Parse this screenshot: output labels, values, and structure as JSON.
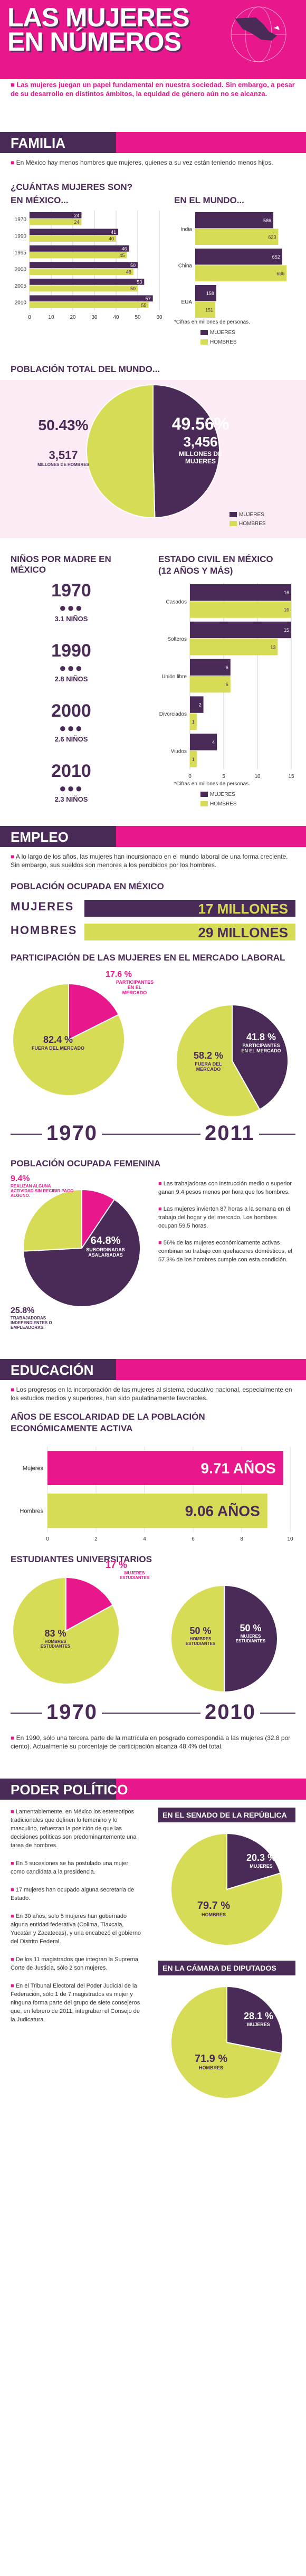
{
  "header": {
    "title_line1": "LAS MUJERES",
    "title_line2": "EN NÚMEROS",
    "intro": "Las mujeres juegan un papel fundamental en nuestra sociedad. Sin embargo, a pesar de su desarrollo en distintos ámbitos, la equidad de género aún no se alcanza."
  },
  "colors": {
    "pink": "#e8188c",
    "purple": "#4a2a57",
    "yellow": "#d7dc57",
    "lightpink": "#f7c5df"
  },
  "familia": {
    "heading": "FAMILIA",
    "bullet": "En México hay menos hombres que mujeres, quienes a su vez están teniendo menos hijos.",
    "q_title_1": "¿CUÁNTAS MUJERES SON?",
    "q_title_2": "EN MÉXICO...",
    "world_title": "EN EL MUNDO...",
    "footnote": "*Cifras en millones de personas.",
    "legend_women": "MUJERES",
    "legend_men": "HOMBRES"
  },
  "poblacion": {
    "title": "POBLACIÓN TOTAL DEL MUNDO...",
    "men_pct": "50.43%",
    "men_num": "3,517",
    "men_label": "MILLONES DE HOMBRES",
    "women_pct": "49.56%",
    "women_num": "3,456",
    "women_label": "MILLONES DE MUJERES",
    "legend_women": "MUJERES",
    "legend_men": "HOMBRES"
  },
  "ninos": {
    "title": "NIÑOS POR MADRE EN MÉXICO",
    "items": [
      {
        "year": "1970",
        "value": "3.1 NIÑOS"
      },
      {
        "year": "1990",
        "value": "2.8 NIÑOS"
      },
      {
        "year": "2000",
        "value": "2.6 NIÑOS"
      },
      {
        "year": "2010",
        "value": "2.3 NIÑOS"
      }
    ]
  },
  "civil": {
    "title_1": "ESTADO CIVIL EN MÉXICO",
    "title_2": "(12 AÑOS Y MÁS)",
    "footnote": "*Cifras en millones de personas.",
    "legend_women": "MUJERES",
    "legend_men": "HOMBRES"
  },
  "empleo": {
    "heading": "EMPLEO",
    "bullet": "A lo largo de los años, las mujeres han incursionado en el mundo laboral de una forma creciente. Sin embargo, sus sueldos son menores a los percibidos por los hombres.",
    "ocupada_title": "POBLACIÓN OCUPADA EN MÉXICO",
    "mujeres_label": "MUJERES",
    "mujeres_value": "17 MILLONES",
    "hombres_label": "HOMBRES",
    "hombres_value": "29 MILLONES",
    "participacion_title": "PARTICIPACIÓN DE LAS MUJERES EN EL MERCADO LABORAL",
    "p1970_in": "17.6 %",
    "p1970_in_label": "PARTICIPANTES EN EL MERCADO",
    "p1970_out": "82.4 %",
    "p1970_out_label": "FUERA DEL MERCADO",
    "p2011_in": "41.8 %",
    "p2011_in_label": "PARTICIPANTES EN EL MERCADO",
    "p2011_out": "58.2 %",
    "p2011_out_label": "FUERA DEL MERCADO",
    "year_a": "1970",
    "year_b": "2011",
    "fem_title": "POBLACIÓN OCUPADA FEMENINA",
    "fem_a": "9.4%",
    "fem_a_label": "REALIZAN ALGUNA ACTIVIDAD SIN RECIBIR PAGO ALGUNO.",
    "fem_b": "64.8%",
    "fem_b_label": "SUBORDINADAS ASALARIADAS",
    "fem_c": "25.8%",
    "fem_c_label": "TRABAJADORAS INDEPENDIENTES O EMPLEADORAS.",
    "notes": [
      "Las trabajadoras con instrucción medio o superior ganan 9.4 pesos menos por hora que los hombres.",
      "Las mujeres invierten 87 horas a la semana en el trabajo del hogar y del mercado. Los hombres ocupan 59.5 horas.",
      "56% de las mujeres económicamente activas combinan su trabajo con quehaceres domésticos, el 57.3% de los hombres cumple con esta condición."
    ]
  },
  "educacion": {
    "heading": "EDUCACIÓN",
    "bullet": "Los progresos en la incorporación de las mujeres al sistema educativo nacional, especialmente en los estudios medios y superiores, han sido paulatinamente favorables.",
    "anos_title_1": "AÑOS DE ESCOLARIDAD DE LA POBLACIÓN",
    "anos_title_2": "ECONÓMICAMENTE ACTIVA",
    "mujeres_label": "Mujeres",
    "mujeres_value": "9.71 AÑOS",
    "hombres_label": "Hombres",
    "hombres_value": "9.06 AÑOS",
    "univ_title": "ESTUDIANTES UNIVERSITARIOS",
    "u1970_w": "17 %",
    "u1970_w_label": "MUJERES ESTUDIANTES",
    "u1970_m": "83 %",
    "u1970_m_label": "HOMBRES ESTUDIANTES",
    "u2010_m": "50 %",
    "u2010_m_label": "HOMBRES ESTUDIANTES",
    "u2010_w": "50 %",
    "u2010_w_label": "MUJERES ESTUDIANTES",
    "year_a": "1970",
    "year_b": "2010",
    "notes": [
      "En 1990, sólo una tercera parte de la matrícula en posgrado correspondía a las mujeres (32.8 por ciento). Actualmente su porcentaje de participación alcanza 48.4% del total."
    ]
  },
  "politico": {
    "heading": "PODER POLÍTICO",
    "intro": "Lamentablemente, en México los estereotipos tradicionales que definen lo femenino y lo masculino, refuerzan la posición de que las decisiones políticas son predominantemente una tarea de hombres.",
    "notes": [
      "En 5 sucesiones se ha postulado una mujer como candidata a la presidencia.",
      "17 mujeres han ocupado alguna secretaría de Estado.",
      "En 30 años, sólo 5 mujeres han gobernado alguna entidad federativa (Colima, Tlaxcala, Yucatán y Zacatecas), y una encabezó el gobierno del Distrito Federal.",
      "De los 11 magistrados que integran la Suprema Corte de Justicia, sólo 2 son mujeres.",
      "En el Tribunal Electoral del Poder Judicial de la Federación, sólo 1 de 7 magistrados es mujer y ninguna forma parte del grupo de siete consejeros que, en febrero de 2011, integraban el Consejo de la Judicatura."
    ],
    "senado_title": "EN EL SENADO DE LA REPÚBLICA",
    "senado_w": "20.3 %",
    "senado_w_label": "MUJERES",
    "senado_m": "79.7 %",
    "senado_m_label": "HOMBRES",
    "dip_title": "EN LA CÁMARA DE DIPUTADOS",
    "dip_w": "28.1 %",
    "dip_w_label": "MUJERES",
    "dip_m": "71.9 %",
    "dip_m_label": "HOMBRES"
  },
  "chart_data": [
    {
      "type": "bar",
      "title": "¿CUÁNTAS MUJERES SON? EN MÉXICO...",
      "orientation": "horizontal",
      "categories": [
        "1970",
        "1990",
        "1995",
        "2000",
        "2005",
        "2010"
      ],
      "series": [
        {
          "name": "MUJERES",
          "values": [
            24,
            41,
            46,
            50,
            53,
            57
          ]
        },
        {
          "name": "HOMBRES",
          "values": [
            24,
            40,
            45,
            48,
            50,
            55
          ]
        }
      ],
      "xlim": [
        0,
        60
      ],
      "xticks": [
        0,
        10,
        20,
        30,
        40,
        50,
        60
      ]
    },
    {
      "type": "bar",
      "title": "EN EL MUNDO...",
      "orientation": "horizontal",
      "categories": [
        "India",
        "China",
        "EUA"
      ],
      "series": [
        {
          "name": "MUJERES",
          "values": [
            586,
            652,
            158
          ]
        },
        {
          "name": "HOMBRES",
          "values": [
            623,
            686,
            151
          ]
        }
      ]
    },
    {
      "type": "pie",
      "title": "POBLACIÓN TOTAL DEL MUNDO...",
      "categories": [
        "HOMBRES",
        "MUJERES"
      ],
      "values": [
        50.43,
        49.56
      ]
    },
    {
      "type": "bar",
      "title": "ESTADO CIVIL EN MÉXICO (12 AÑOS Y MÁS)",
      "orientation": "horizontal",
      "categories": [
        "Casados",
        "Solteros",
        "Unión libre",
        "Divorciados",
        "Viudos"
      ],
      "series": [
        {
          "name": "MUJERES",
          "values": [
            16,
            15,
            6,
            2,
            4
          ]
        },
        {
          "name": "HOMBRES",
          "values": [
            16,
            13,
            6,
            1,
            1
          ]
        }
      ],
      "xlim": [
        0,
        15
      ],
      "xticks": [
        0,
        5,
        10,
        15
      ]
    },
    {
      "type": "pie",
      "title": "PARTICIPACIÓN 1970",
      "categories": [
        "PARTICIPANTES EN EL MERCADO",
        "FUERA DEL MERCADO"
      ],
      "values": [
        17.6,
        82.4
      ]
    },
    {
      "type": "pie",
      "title": "PARTICIPACIÓN 2011",
      "categories": [
        "PARTICIPANTES EN EL MERCADO",
        "FUERA DEL MERCADO"
      ],
      "values": [
        41.8,
        58.2
      ]
    },
    {
      "type": "pie",
      "title": "POBLACIÓN OCUPADA FEMENINA",
      "categories": [
        "SIN PAGO",
        "SUBORDINADAS ASALARIADAS",
        "INDEPENDIENTES"
      ],
      "values": [
        9.4,
        64.8,
        25.8
      ]
    },
    {
      "type": "bar",
      "title": "AÑOS DE ESCOLARIDAD DE LA POBLACIÓN ECONÓMICAMENTE ACTIVA",
      "orientation": "horizontal",
      "categories": [
        "Mujeres",
        "Hombres"
      ],
      "values": [
        9.71,
        9.06
      ],
      "xlim": [
        0,
        10
      ],
      "xticks": [
        0,
        2,
        4,
        6,
        8,
        10
      ]
    },
    {
      "type": "pie",
      "title": "ESTUDIANTES UNIVERSITARIOS 1970",
      "categories": [
        "MUJERES ESTUDIANTES",
        "HOMBRES ESTUDIANTES"
      ],
      "values": [
        17,
        83
      ]
    },
    {
      "type": "pie",
      "title": "ESTUDIANTES UNIVERSITARIOS 2010",
      "categories": [
        "HOMBRES ESTUDIANTES",
        "MUJERES ESTUDIANTES"
      ],
      "values": [
        50,
        50
      ]
    },
    {
      "type": "pie",
      "title": "EN EL SENADO DE LA REPÚBLICA",
      "categories": [
        "MUJERES",
        "HOMBRES"
      ],
      "values": [
        20.3,
        79.7
      ]
    },
    {
      "type": "pie",
      "title": "EN LA CÁMARA DE DIPUTADOS",
      "categories": [
        "MUJERES",
        "HOMBRES"
      ],
      "values": [
        28.1,
        71.9
      ]
    }
  ]
}
